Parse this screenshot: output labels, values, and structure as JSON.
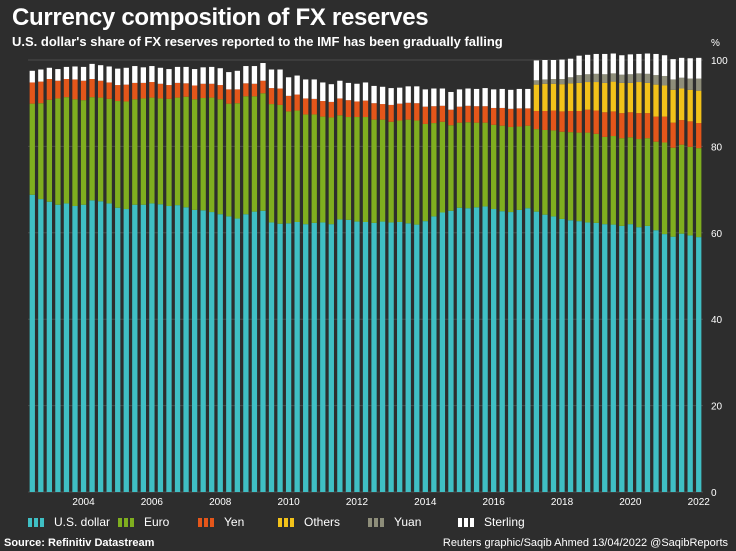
{
  "title": "Currency composition of FX reserves",
  "subtitle": "U.S. dollar's share of FX reserves reported to the IMF has been gradually falling",
  "source": "Source: Refinitiv Datastream",
  "credit": "Reuters graphic/Saqib Ahmed 13/04/2022 @SaqibReports",
  "colors": {
    "usd": "#3fbfc4",
    "eur": "#7fae1f",
    "jpy": "#e4561a",
    "oth": "#f2c21a",
    "cny": "#8e8e7a",
    "gbp": "#ffffff",
    "background": "#2d2d2d",
    "grid": "#4a4a4a"
  },
  "legend": [
    {
      "key": "usd",
      "label": "U.S. dollar"
    },
    {
      "key": "eur",
      "label": "Euro"
    },
    {
      "key": "jpy",
      "label": "Yen"
    },
    {
      "key": "oth",
      "label": "Others"
    },
    {
      "key": "cny",
      "label": "Yuan"
    },
    {
      "key": "gbp",
      "label": "Sterling"
    }
  ],
  "chart_data": {
    "type": "bar",
    "stacked": true,
    "title": "Currency composition of FX reserves",
    "ylabel": "%",
    "ylim": [
      0,
      100
    ],
    "yticks": [
      0,
      20,
      40,
      60,
      80,
      100
    ],
    "xticks": [
      "2004",
      "2006",
      "2008",
      "2010",
      "2012",
      "2014",
      "2016",
      "2018",
      "2020",
      "2022"
    ],
    "categories_note": "quarterly, Q3 2002 to Q4 2021",
    "series": [
      {
        "name": "U.S. dollar",
        "key": "usd",
        "values": [
          68.8,
          67.8,
          67.2,
          66.5,
          66.8,
          66.2,
          66.5,
          67.5,
          67.3,
          66.8,
          65.8,
          65.5,
          66.5,
          66.5,
          66.8,
          66.6,
          66.2,
          66.4,
          65.9,
          65.3,
          65.2,
          64.8,
          64.3,
          63.8,
          63.3,
          64.3,
          64.9,
          65.1,
          62.4,
          62.1,
          62.2,
          62.5,
          62.0,
          62.3,
          62.4,
          62.0,
          63.1,
          63.0,
          62.6,
          62.5,
          62.3,
          62.6,
          62.4,
          62.5,
          62.2,
          61.9,
          62.7,
          63.8,
          64.7,
          65.1,
          65.8,
          65.7,
          65.9,
          66.1,
          65.5,
          65.0,
          64.8,
          65.3,
          65.7,
          64.9,
          64.2,
          63.8,
          63.2,
          62.9,
          62.7,
          62.4,
          62.3,
          62.0,
          61.9,
          61.6,
          62.0,
          61.3,
          61.6,
          60.6,
          59.7,
          59.1,
          59.8,
          59.4,
          59.0
        ]
      },
      {
        "name": "Euro",
        "key": "eur",
        "values": [
          21.1,
          22.2,
          23.6,
          24.6,
          24.6,
          24.7,
          24.2,
          23.9,
          24.0,
          24.2,
          24.7,
          24.9,
          24.4,
          24.6,
          24.5,
          24.5,
          24.8,
          24.9,
          25.6,
          25.6,
          26.0,
          26.5,
          26.6,
          26.1,
          26.7,
          27.3,
          26.7,
          27.2,
          27.4,
          27.5,
          25.9,
          25.8,
          25.4,
          25.1,
          24.5,
          24.7,
          24.1,
          23.8,
          24.2,
          24.3,
          23.9,
          23.6,
          23.3,
          23.5,
          24.0,
          24.1,
          22.5,
          21.6,
          21.0,
          19.8,
          19.7,
          19.9,
          19.6,
          19.4,
          19.5,
          19.8,
          19.7,
          19.3,
          19.1,
          19.1,
          19.6,
          19.9,
          20.2,
          20.4,
          20.5,
          20.8,
          20.6,
          20.2,
          20.5,
          20.3,
          20.1,
          20.4,
          20.3,
          20.5,
          21.2,
          20.6,
          20.6,
          20.5,
          20.6
        ]
      },
      {
        "name": "Yen",
        "key": "jpy",
        "values": [
          4.9,
          5.0,
          4.8,
          4.1,
          4.2,
          4.6,
          4.5,
          4.2,
          3.9,
          3.8,
          3.7,
          3.9,
          3.8,
          3.6,
          3.6,
          3.4,
          3.2,
          3.4,
          3.1,
          3.2,
          3.3,
          3.2,
          3.3,
          3.3,
          3.2,
          3.0,
          2.9,
          2.9,
          3.7,
          3.8,
          3.6,
          3.7,
          3.7,
          3.6,
          3.6,
          3.6,
          3.9,
          3.9,
          3.6,
          3.8,
          3.8,
          3.6,
          3.9,
          3.9,
          3.9,
          4.0,
          4.0,
          3.9,
          3.7,
          3.6,
          3.7,
          3.8,
          3.8,
          3.8,
          3.9,
          4.1,
          4.2,
          4.2,
          4.0,
          4.2,
          4.4,
          4.6,
          4.7,
          4.9,
          5.0,
          5.3,
          5.4,
          5.7,
          5.7,
          5.8,
          5.8,
          6.0,
          5.8,
          5.8,
          6.0,
          5.8,
          5.7,
          5.9,
          5.8
        ]
      },
      {
        "name": "Others",
        "key": "oth",
        "values": [
          0,
          0,
          0,
          0,
          0,
          0,
          0,
          0,
          0,
          0,
          0,
          0,
          0,
          0,
          0,
          0,
          0,
          0,
          0,
          0,
          0,
          0,
          0,
          0,
          0,
          0,
          0,
          0,
          0,
          0,
          0,
          0,
          0,
          0,
          0,
          0,
          0,
          0,
          0,
          0,
          0,
          0,
          0,
          0,
          0,
          0,
          0,
          0,
          0,
          0,
          0,
          0,
          0,
          0,
          0,
          0,
          0,
          0,
          0,
          6.1,
          6.3,
          6.2,
          6.3,
          6.4,
          6.5,
          6.4,
          6.6,
          6.8,
          6.9,
          7.0,
          6.8,
          7.2,
          7.0,
          7.4,
          7.2,
          7.6,
          7.3,
          7.3,
          7.5
        ]
      },
      {
        "name": "Yuan",
        "key": "cny",
        "values": [
          0,
          0,
          0,
          0,
          0,
          0,
          0,
          0,
          0,
          0,
          0,
          0,
          0,
          0,
          0,
          0,
          0,
          0,
          0,
          0,
          0,
          0,
          0,
          0,
          0,
          0,
          0,
          0,
          0,
          0,
          0,
          0,
          0,
          0,
          0,
          0,
          0,
          0,
          0,
          0,
          0,
          0,
          0,
          0,
          0,
          0,
          0,
          0,
          0,
          0,
          0,
          0,
          0,
          0,
          0,
          0,
          0,
          0,
          0,
          1.0,
          1.0,
          1.1,
          1.2,
          1.4,
          1.8,
          1.8,
          1.9,
          2.0,
          1.9,
          1.9,
          2.0,
          2.0,
          2.1,
          2.2,
          2.2,
          2.4,
          2.5,
          2.6,
          2.8
        ]
      },
      {
        "name": "Sterling",
        "key": "gbp",
        "values": [
          2.7,
          2.8,
          2.6,
          2.7,
          2.8,
          3.0,
          3.2,
          3.5,
          3.6,
          3.7,
          3.8,
          3.9,
          3.9,
          3.6,
          3.7,
          3.7,
          3.7,
          3.7,
          3.8,
          3.8,
          3.8,
          3.9,
          3.9,
          4.0,
          4.3,
          4.0,
          4.1,
          4.1,
          4.3,
          4.4,
          4.3,
          4.4,
          4.4,
          4.5,
          4.3,
          4.1,
          4.1,
          4.0,
          4.1,
          4.2,
          4.0,
          4.0,
          3.9,
          3.7,
          3.8,
          3.9,
          4.0,
          4.1,
          4.0,
          4.1,
          4.0,
          4.0,
          4.0,
          4.2,
          4.3,
          4.4,
          4.4,
          4.5,
          4.5,
          4.6,
          4.5,
          4.4,
          4.5,
          4.3,
          4.5,
          4.5,
          4.6,
          4.7,
          4.6,
          4.5,
          4.6,
          4.5,
          4.7,
          4.9,
          4.8,
          4.7,
          4.6,
          4.7,
          4.8
        ]
      }
    ]
  }
}
